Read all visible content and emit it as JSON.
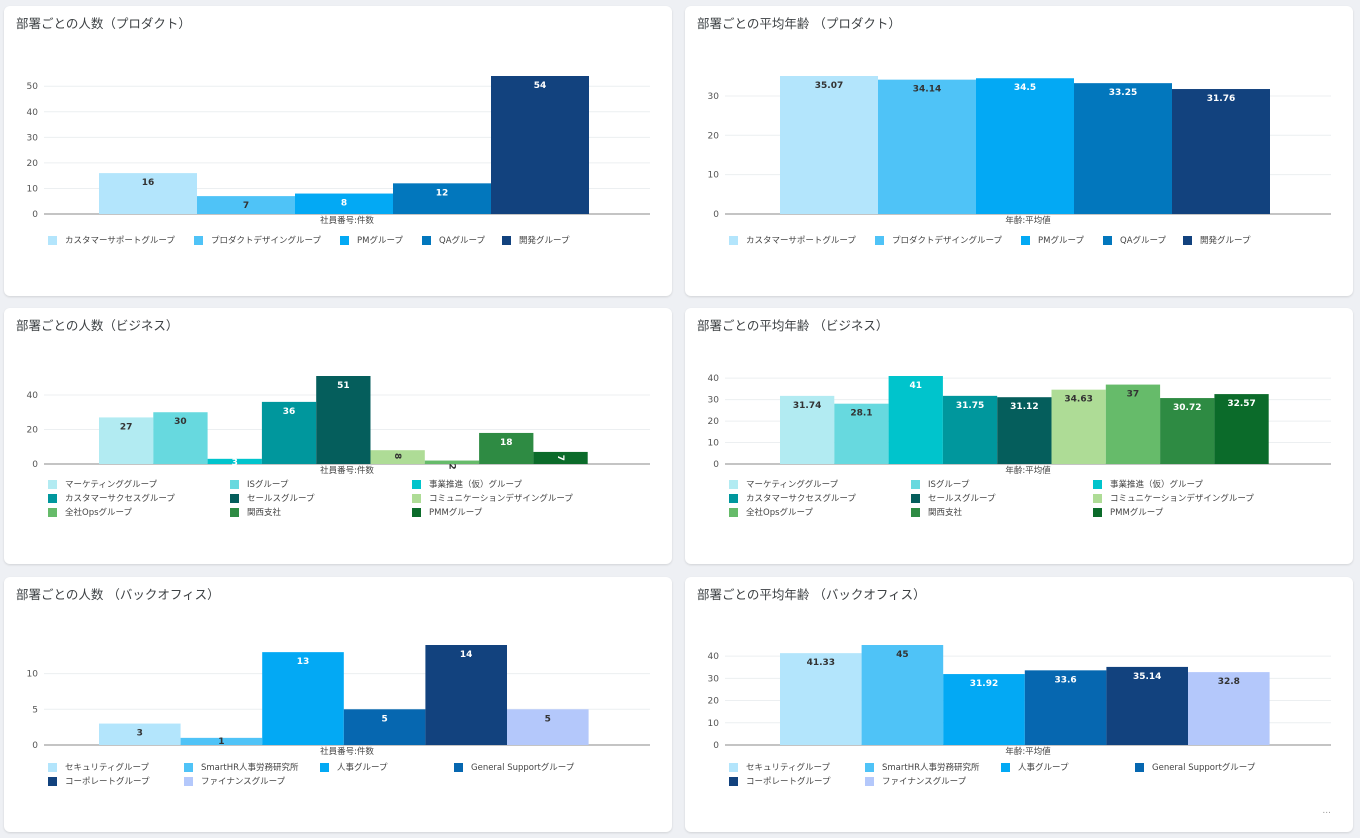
{
  "cards": [
    {
      "id": "c1",
      "title": "部署ごとの人数（プロダクト）",
      "chart_data": {
        "type": "bar",
        "xlabel": "社員番号:件数",
        "ylim": [
          0,
          54
        ],
        "yticks": [
          0,
          10,
          20,
          30,
          40,
          50
        ],
        "legend_columns": 5,
        "series": [
          {
            "name": "カスタマーサポートグループ",
            "value": 16,
            "color": "#b3e5fc"
          },
          {
            "name": "プロダクトデザイングループ",
            "value": 7,
            "color": "#4fc3f7"
          },
          {
            "name": "PMグループ",
            "value": 8,
            "color": "#03a9f4"
          },
          {
            "name": "QAグループ",
            "value": 12,
            "color": "#0277bd"
          },
          {
            "name": "開発グループ",
            "value": 54,
            "color": "#12427e"
          }
        ]
      }
    },
    {
      "id": "c2",
      "title": "部署ごとの平均年齢 （プロダクト）",
      "chart_data": {
        "type": "bar",
        "xlabel": "年齢:平均値",
        "ylim": [
          0,
          35.07
        ],
        "yticks": [
          0,
          10,
          20,
          30
        ],
        "legend_columns": 5,
        "series": [
          {
            "name": "カスタマーサポートグループ",
            "value": 35.07,
            "label": "35.07",
            "color": "#b3e5fc"
          },
          {
            "name": "プロダクトデザイングループ",
            "value": 34.14,
            "label": "34.14",
            "color": "#4fc3f7"
          },
          {
            "name": "PMグループ",
            "value": 34.5,
            "label": "34.5",
            "color": "#03a9f4"
          },
          {
            "name": "QAグループ",
            "value": 33.25,
            "label": "33.25",
            "color": "#0277bd"
          },
          {
            "name": "開発グループ",
            "value": 31.76,
            "label": "31.76",
            "color": "#12427e"
          }
        ]
      }
    },
    {
      "id": "c3",
      "title": "部署ごとの人数（ビジネス）",
      "chart_data": {
        "type": "bar",
        "xlabel": "社員番号:件数",
        "ylim": [
          0,
          51
        ],
        "yticks": [
          0,
          20,
          40
        ],
        "legend_columns": 3,
        "series": [
          {
            "name": "マーケティンググループ",
            "value": 27,
            "color": "#b2ebf2"
          },
          {
            "name": "ISグループ",
            "value": 30,
            "color": "#67d9df"
          },
          {
            "name": "事業推進（仮）グループ",
            "value": 3,
            "color": "#00c4cc"
          },
          {
            "name": "カスタマーサクセスグループ",
            "value": 36,
            "color": "#00979d"
          },
          {
            "name": "セールスグループ",
            "value": 51,
            "color": "#055e5c"
          },
          {
            "name": "コミュニケーションデザイングループ",
            "value": 8,
            "label": "8",
            "rotate": true,
            "color": "#aedc96"
          },
          {
            "name": "全社Opsグループ",
            "value": 2,
            "label": "2",
            "rotate": true,
            "color": "#66bb6a"
          },
          {
            "name": "関西支社",
            "value": 18,
            "color": "#2e8b43"
          },
          {
            "name": "PMMグループ",
            "value": 7,
            "label": "7",
            "rotate": true,
            "color": "#0b6b2a"
          }
        ]
      }
    },
    {
      "id": "c4",
      "title": "部署ごとの平均年齢 （ビジネス）",
      "chart_data": {
        "type": "bar",
        "xlabel": "年齢:平均値",
        "ylim": [
          0,
          41
        ],
        "yticks": [
          0,
          10,
          20,
          30,
          40
        ],
        "legend_columns": 3,
        "series": [
          {
            "name": "マーケティンググループ",
            "value": 31.74,
            "label": "31.74",
            "color": "#b2ebf2"
          },
          {
            "name": "ISグループ",
            "value": 28.1,
            "label": "28.1",
            "color": "#67d9df"
          },
          {
            "name": "事業推進（仮）グループ",
            "value": 41,
            "label": "41",
            "color": "#00c4cc"
          },
          {
            "name": "カスタマーサクセスグループ",
            "value": 31.75,
            "label": "31.75",
            "color": "#00979d"
          },
          {
            "name": "セールスグループ",
            "value": 31.12,
            "label": "31.12",
            "color": "#055e5c"
          },
          {
            "name": "コミュニケーションデザイングループ",
            "value": 34.63,
            "label": "34.63",
            "color": "#aedc96"
          },
          {
            "name": "全社Opsグループ",
            "value": 37,
            "label": "37",
            "color": "#66bb6a"
          },
          {
            "name": "関西支社",
            "value": 30.72,
            "label": "30.72",
            "color": "#2e8b43"
          },
          {
            "name": "PMMグループ",
            "value": 32.57,
            "label": "32.57",
            "color": "#0b6b2a"
          }
        ]
      }
    },
    {
      "id": "c5",
      "title": "部署ごとの人数 （バックオフィス）",
      "chart_data": {
        "type": "bar",
        "xlabel": "社員番号:件数",
        "ylim": [
          0,
          14
        ],
        "yticks": [
          0,
          5,
          10
        ],
        "legend_columns": 4,
        "series": [
          {
            "name": "セキュリティグループ",
            "value": 3,
            "color": "#b3e5fc"
          },
          {
            "name": "SmartHR人事労務研究所",
            "value": 1,
            "label": "1",
            "color": "#4fc3f7"
          },
          {
            "name": "人事グループ",
            "value": 13,
            "color": "#03a9f4"
          },
          {
            "name": "General Supportグループ",
            "value": 5,
            "color": "#0667b0"
          },
          {
            "name": "コーポレートグループ",
            "value": 14,
            "color": "#12427e"
          },
          {
            "name": "ファイナンスグループ",
            "value": 5,
            "color": "#b4c8fb"
          }
        ]
      }
    },
    {
      "id": "c6",
      "title": "部署ごとの平均年齢 （バックオフィス）",
      "chart_data": {
        "type": "bar",
        "xlabel": "年齢:平均値",
        "ylim": [
          0,
          45
        ],
        "yticks": [
          0,
          10,
          20,
          30,
          40
        ],
        "legend_columns": 4,
        "series": [
          {
            "name": "セキュリティグループ",
            "value": 41.33,
            "label": "41.33",
            "color": "#b3e5fc"
          },
          {
            "name": "SmartHR人事労務研究所",
            "value": 45,
            "label": "45",
            "color": "#4fc3f7"
          },
          {
            "name": "人事グループ",
            "value": 31.92,
            "label": "31.92",
            "color": "#03a9f4"
          },
          {
            "name": "General Supportグループ",
            "value": 33.6,
            "label": "33.6",
            "color": "#0667b0"
          },
          {
            "name": "コーポレートグループ",
            "value": 35.14,
            "label": "35.14",
            "color": "#12427e"
          },
          {
            "name": "ファイナンスグループ",
            "value": 32.8,
            "label": "32.8",
            "color": "#b4c8fb"
          }
        ]
      }
    }
  ],
  "footer": {
    "more_label": "..."
  }
}
